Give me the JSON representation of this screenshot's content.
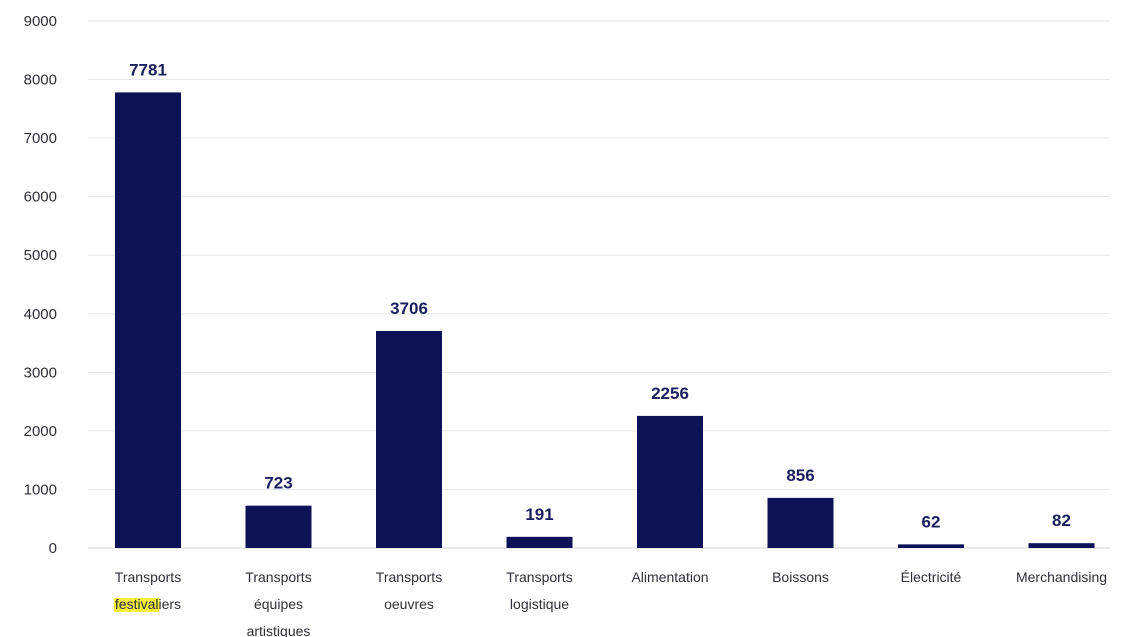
{
  "chart_data": {
    "type": "bar",
    "title": "",
    "xlabel": "",
    "ylabel": "",
    "ylim": [
      0,
      9000
    ],
    "yticks": [
      0,
      1000,
      2000,
      3000,
      4000,
      5000,
      6000,
      7000,
      8000,
      9000
    ],
    "grid": true,
    "legend": "none",
    "bar_color": "#0d1156",
    "highlight_color": "#f5ef3a",
    "categories": [
      "Transports festivaliers",
      "Transports équipes artistiques",
      "Transports oeuvres",
      "Transports logistique",
      "Alimentation",
      "Boissons",
      "Électricité",
      "Merchandising"
    ],
    "category_lines": [
      [
        "Transports",
        "festivaliers"
      ],
      [
        "Transports",
        "équipes",
        "artistiques"
      ],
      [
        "Transports",
        "oeuvres"
      ],
      [
        "Transports",
        "logistique"
      ],
      [
        "Alimentation"
      ],
      [
        "Boissons"
      ],
      [
        "Électricité"
      ],
      [
        "Merchandising"
      ]
    ],
    "highlighted_text": "festival",
    "values": [
      7781,
      723,
      3706,
      191,
      2256,
      856,
      62,
      82
    ]
  }
}
